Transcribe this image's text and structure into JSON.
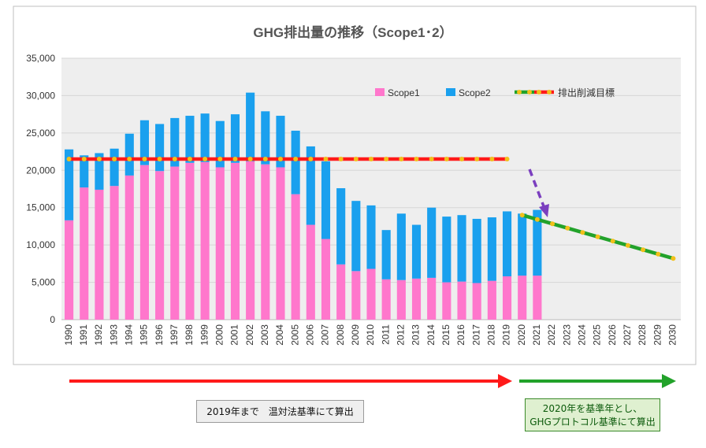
{
  "chart_data": {
    "type": "bar",
    "title": "GHG排出量の推移（Scope1･2）",
    "categories": [
      "1990",
      "1991",
      "1992",
      "1993",
      "1994",
      "1995",
      "1996",
      "1997",
      "1998",
      "1999",
      "2000",
      "2001",
      "2002",
      "2003",
      "2004",
      "2005",
      "2006",
      "2007",
      "2008",
      "2009",
      "2010",
      "2011",
      "2012",
      "2013",
      "2014",
      "2015",
      "2016",
      "2017",
      "2018",
      "2019",
      "2020",
      "2021",
      "2022",
      "2023",
      "2024",
      "2025",
      "2026",
      "2027",
      "2028",
      "2029",
      "2030"
    ],
    "ylim": [
      0,
      35000
    ],
    "yticks": [
      "0",
      "5,000",
      "10,000",
      "15,000",
      "20,000",
      "25,000",
      "30,000",
      "35,000"
    ],
    "ytick_values": [
      0,
      5000,
      10000,
      15000,
      20000,
      25000,
      30000,
      35000
    ],
    "stacked": true,
    "series": [
      {
        "name": "Scope1",
        "color": "#ff77cc",
        "values": [
          13300,
          17700,
          17400,
          17900,
          19300,
          20700,
          19900,
          20500,
          21000,
          21100,
          20400,
          21000,
          21200,
          20800,
          20400,
          16800,
          12700,
          10800,
          7400,
          6500,
          6800,
          5400,
          5300,
          5500,
          5600,
          5000,
          5100,
          4900,
          5200,
          5800,
          5900,
          5900,
          null,
          null,
          null,
          null,
          null,
          null,
          null,
          null,
          null
        ]
      },
      {
        "name": "Scope2",
        "color": "#1aa0ee",
        "values": [
          9500,
          4300,
          4900,
          5000,
          5600,
          6000,
          6300,
          6500,
          6300,
          6500,
          6200,
          6500,
          9200,
          7100,
          6900,
          8500,
          10500,
          10400,
          10200,
          9400,
          8500,
          6600,
          8900,
          7200,
          9400,
          8800,
          8900,
          8600,
          8500,
          8700,
          8300,
          8800,
          null,
          null,
          null,
          null,
          null,
          null,
          null,
          null,
          null
        ]
      }
    ],
    "target": {
      "name": "排出削減目標",
      "baseline_value": 21500,
      "baseline_from": "1990",
      "baseline_to": "2019",
      "path_from": "2020",
      "path_from_value": 14000,
      "path_to": "2030",
      "path_to_value": 8200
    },
    "legend": [
      "Scope1",
      "Scope2",
      "排出削減目標"
    ],
    "legend_position": "top-right",
    "grid": true,
    "colors": {
      "plot_bg": "#eeeeee",
      "red": "#ff1a1a",
      "green": "#22a22a",
      "dot": "#f2c01a",
      "purple": "#7b3fbf"
    }
  },
  "notes": {
    "before": "2019年まで　温対法基準にて算出",
    "after_line1": "2020年を基準年とし、",
    "after_line2": "GHGプロトコル基準にて算出"
  }
}
